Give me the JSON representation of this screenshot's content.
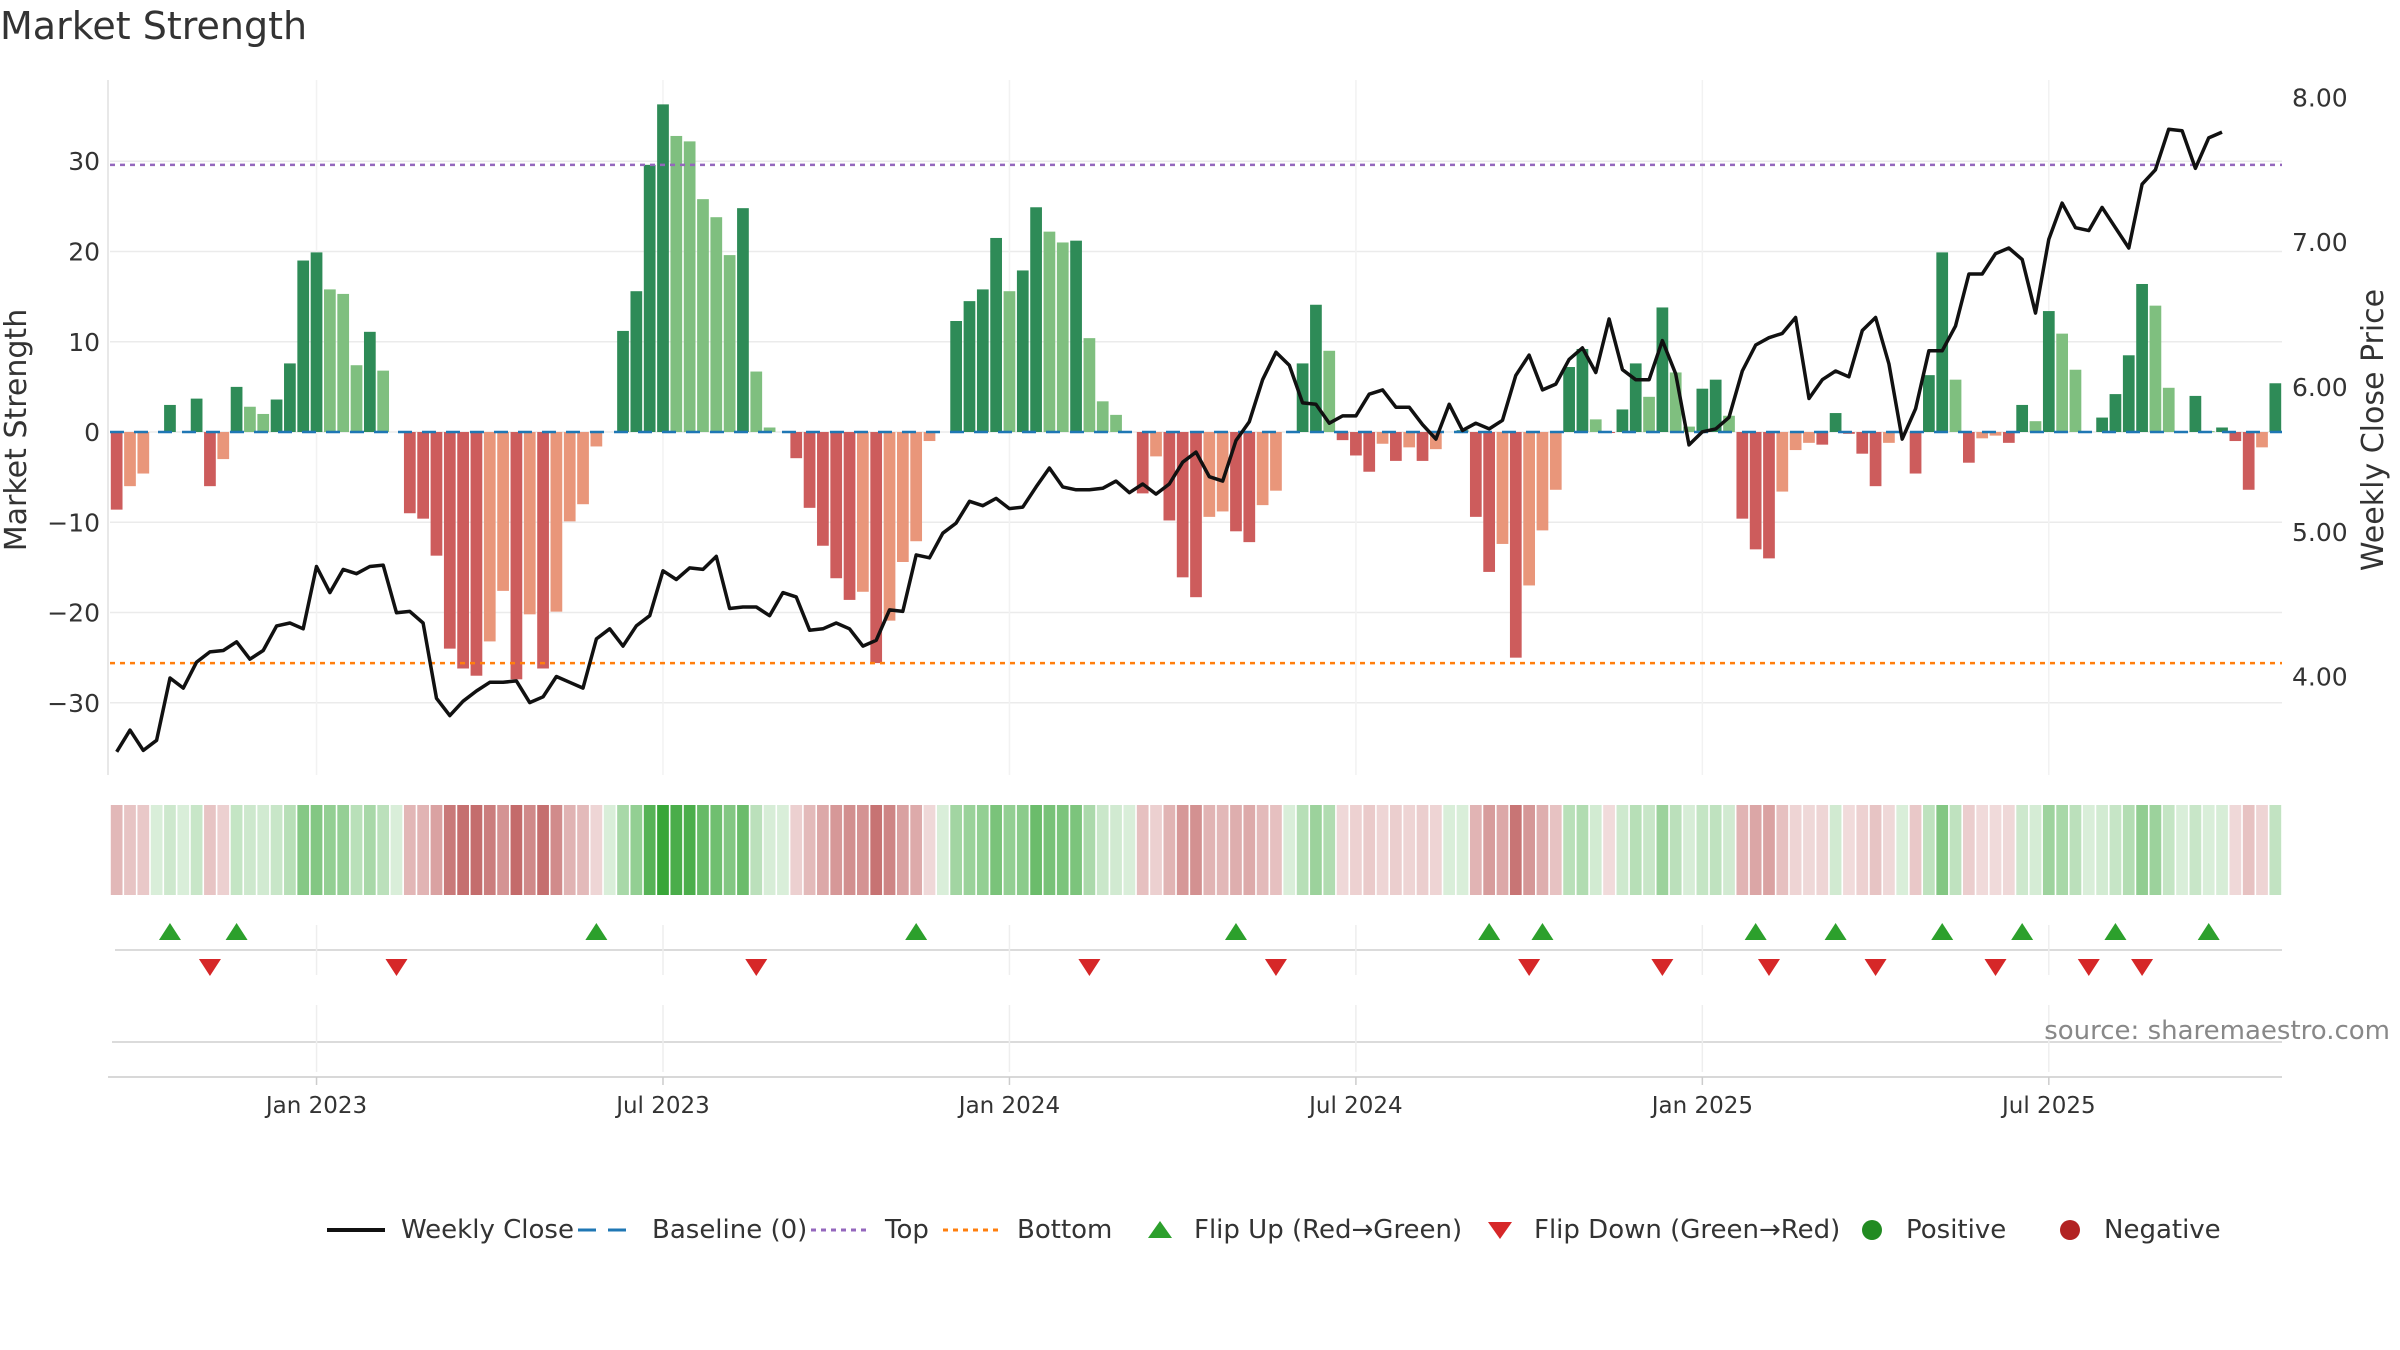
{
  "title": "Market Strength",
  "source": "source: sharemaestro.com",
  "colors": {
    "strong_green": "#2e8b57",
    "light_green": "#7fbf7f",
    "strong_red": "#cd5c5c",
    "light_red": "#e9967a",
    "baseline": "#1f77b4",
    "top": "#9467bd",
    "bottom": "#ff7f0e",
    "close": "#111111",
    "flip_up": "#2ca02c",
    "flip_down": "#d62728",
    "positive": "#228b22",
    "negative": "#b22222"
  },
  "chart_data": {
    "type": "bar",
    "title": "Market Strength",
    "ylabel": "Market Strength",
    "y2label": "Weekly Close Price",
    "ylim": [
      -38,
      39
    ],
    "y2lim": [
      3.32,
      8.12
    ],
    "yticks": [
      30,
      20,
      10,
      0,
      -10,
      -20,
      -30
    ],
    "ytick_labels": [
      "30",
      "20",
      "10",
      "0",
      "−10",
      "−20",
      "−30"
    ],
    "y2ticks": [
      8,
      7,
      6,
      5,
      4
    ],
    "y2tick_labels": [
      "8.00",
      "7.00",
      "6.00",
      "5.00",
      "4.00"
    ],
    "top_level": 29.6,
    "bottom_level": -25.6,
    "xticks": [
      {
        "week": 15,
        "label": "Jan 2023"
      },
      {
        "week": 41,
        "label": "Jul 2023"
      },
      {
        "week": 67,
        "label": "Jan 2024"
      },
      {
        "week": 93,
        "label": "Jul 2024"
      },
      {
        "week": 119,
        "label": "Jan 2025"
      },
      {
        "week": 145,
        "label": "Jul 2025"
      }
    ],
    "strength": [
      -8.6,
      -6,
      -4.6,
      0,
      3,
      0,
      3.7,
      -6,
      -3,
      5,
      2.8,
      2,
      3.6,
      7.6,
      19,
      19.9,
      15.8,
      15.3,
      7.4,
      11.1,
      6.8,
      0,
      -9,
      -9.6,
      -13.7,
      -24,
      -26.2,
      -27,
      -23.2,
      -17.6,
      -27.4,
      -20.2,
      -26.2,
      -19.9,
      -9.9,
      -8,
      -1.6,
      0,
      11.2,
      15.6,
      29.6,
      36.3,
      32.8,
      32.2,
      25.8,
      23.8,
      19.6,
      24.8,
      6.7,
      0.5,
      0,
      -2.9,
      -8.4,
      -12.6,
      -16.2,
      -18.6,
      -17.7,
      -25.6,
      -20.9,
      -14.4,
      -12.1,
      -1,
      0,
      12.3,
      14.5,
      15.8,
      21.5,
      15.6,
      17.9,
      24.9,
      22.2,
      21,
      21.2,
      10.4,
      3.4,
      1.9,
      0,
      -6.8,
      -2.7,
      -9.8,
      -16.1,
      -18.3,
      -9.4,
      -8.8,
      -11,
      -12.2,
      -8.1,
      -6.5,
      0,
      7.6,
      14.1,
      9,
      -0.9,
      -2.6,
      -4.4,
      -1.3,
      -3.2,
      -1.7,
      -3.2,
      -1.9,
      0,
      0.2,
      -9.4,
      -15.5,
      -12.4,
      -25,
      -17,
      -10.9,
      -6.4,
      7.2,
      9.2,
      1.4,
      -0.1,
      2.5,
      7.6,
      3.9,
      13.8,
      6.6,
      0.6,
      4.8,
      5.8,
      1.8,
      -9.6,
      -13,
      -14,
      -6.6,
      -2,
      -1.2,
      -1.4,
      2.1,
      -0.2,
      -2.4,
      -6,
      -1.2,
      0,
      -4.6,
      6.3,
      19.9,
      5.8,
      -3.4,
      -0.7,
      -0.4,
      -1.2,
      3,
      1.2,
      13.4,
      10.9,
      6.9,
      0,
      1.6,
      4.2,
      8.5,
      16.4,
      14,
      4.9,
      0,
      4,
      0.1,
      0.5,
      -1,
      -6.4,
      -1.7,
      5.4
    ],
    "close": [
      3.48,
      3.63,
      3.49,
      3.56,
      3.99,
      3.92,
      4.1,
      4.17,
      4.18,
      4.24,
      4.12,
      4.18,
      4.35,
      4.37,
      4.33,
      4.76,
      4.58,
      4.74,
      4.71,
      4.76,
      4.77,
      4.44,
      4.45,
      4.37,
      3.85,
      3.73,
      3.83,
      3.9,
      3.96,
      3.96,
      3.97,
      3.82,
      3.86,
      4.0,
      3.96,
      3.92,
      4.26,
      4.33,
      4.21,
      4.35,
      4.42,
      4.73,
      4.67,
      4.75,
      4.74,
      4.83,
      4.47,
      4.48,
      4.48,
      4.42,
      4.58,
      4.55,
      4.32,
      4.33,
      4.37,
      4.33,
      4.21,
      4.25,
      4.46,
      4.45,
      4.84,
      4.82,
      4.99,
      5.06,
      5.21,
      5.18,
      5.23,
      5.16,
      5.17,
      5.31,
      5.44,
      5.31,
      5.29,
      5.29,
      5.3,
      5.35,
      5.27,
      5.33,
      5.26,
      5.33,
      5.48,
      5.55,
      5.38,
      5.35,
      5.63,
      5.76,
      6.05,
      6.24,
      6.15,
      5.89,
      5.88,
      5.75,
      5.8,
      5.8,
      5.95,
      5.98,
      5.86,
      5.86,
      5.74,
      5.64,
      5.88,
      5.7,
      5.75,
      5.71,
      5.77,
      6.08,
      6.22,
      5.98,
      6.02,
      6.19,
      6.27,
      6.1,
      6.47,
      6.12,
      6.05,
      6.05,
      6.32,
      6.09,
      5.6,
      5.69,
      5.71,
      5.79,
      6.11,
      6.29,
      6.34,
      6.37,
      6.48,
      5.92,
      6.05,
      6.11,
      6.07,
      6.39,
      6.48,
      6.16,
      5.64,
      5.85,
      6.25,
      6.25,
      6.42,
      6.78,
      6.78,
      6.92,
      6.96,
      6.88,
      6.51,
      7.02,
      7.27,
      7.1,
      7.08,
      7.24,
      7.1,
      6.96,
      7.4,
      7.5,
      7.78,
      7.77,
      7.51,
      7.72,
      7.76
    ],
    "flip_up_weeks": [
      4,
      9,
      36,
      60,
      84,
      103,
      107,
      123,
      129,
      137,
      143,
      150,
      157
    ],
    "flip_down_weeks": [
      7,
      21,
      48,
      73,
      87,
      106,
      116,
      124,
      132,
      141,
      148,
      152
    ],
    "series": [
      {
        "name": "Weekly Close"
      },
      {
        "name": "Baseline (0)"
      },
      {
        "name": "Top"
      },
      {
        "name": "Bottom"
      }
    ]
  },
  "legend": [
    {
      "label": "Weekly Close",
      "symbol": "line",
      "color": "#111111"
    },
    {
      "label": "Baseline (0)",
      "symbol": "dash",
      "color": "#1f77b4"
    },
    {
      "label": "Top",
      "symbol": "dot",
      "color": "#9467bd"
    },
    {
      "label": "Bottom",
      "symbol": "dot",
      "color": "#ff7f0e"
    },
    {
      "label": "Flip Up (Red→Green)",
      "symbol": "tri-up",
      "color": "#2ca02c"
    },
    {
      "label": "Flip Down (Green→Red)",
      "symbol": "tri-down",
      "color": "#d62728"
    },
    {
      "label": "Positive",
      "symbol": "circle",
      "color": "#228b22"
    },
    {
      "label": "Negative",
      "symbol": "circle",
      "color": "#b22222"
    }
  ]
}
